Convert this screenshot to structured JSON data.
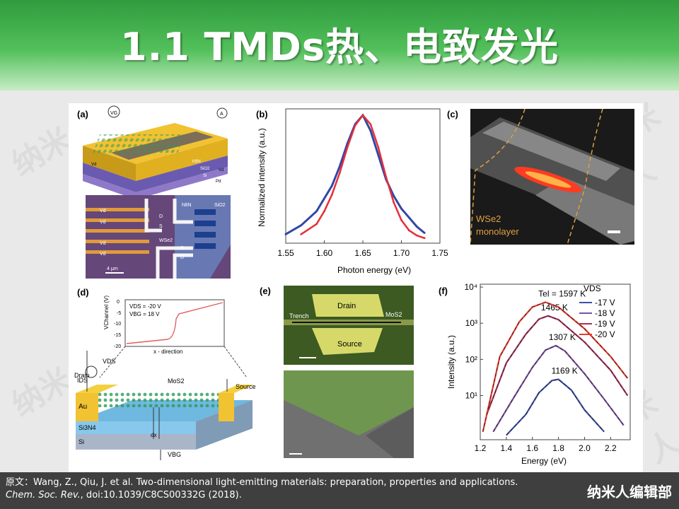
{
  "slide": {
    "title": "1.1 TMDs热、电致发光",
    "watermark": "纳米人",
    "brand": "纳米人编辑部",
    "citation": {
      "prefix": "原文：Wang, Z., Qiu, J. et al. Two-dimensional light-emitting materials: preparation, properties and applications. ",
      "journal": "Chem. Soc. Rev.",
      "suffix": ", doi:10.1039/C8CS00332G (2018)."
    },
    "colors": {
      "banner": "#3aa849",
      "footer": "#3f3f3f"
    }
  },
  "figure": {
    "panel_a": {
      "label": "(a)",
      "device_labels": [
        "VG",
        "A",
        "Vd",
        "Vd",
        "hBN",
        "SiO2",
        "Pd",
        "Si"
      ],
      "micrograph_labels": [
        "Vd",
        "Vd",
        "Vd",
        "Vd",
        "D",
        "S",
        "S",
        "D",
        "WSe2",
        "hBN",
        "SiO2",
        "4 μm"
      ]
    },
    "panel_b": {
      "label": "(b)"
    },
    "panel_c": {
      "label": "(c)",
      "text_line1": "WSe2",
      "text_line2": "monolayer"
    },
    "panel_d": {
      "label": "(d)",
      "inset_labels": [
        "VDS = -20 V",
        "VBG = 18 V",
        "VChannel (V)",
        "x - direction"
      ],
      "inset_yticks": [
        "0",
        "-5",
        "-10",
        "-15",
        "-20"
      ],
      "device_labels": [
        "VDS",
        "IDS",
        "Drain",
        "Source",
        "MoS2",
        "Au",
        "Si3N4",
        "Si",
        "dx",
        "VBG"
      ]
    },
    "panel_e": {
      "label": "(e)",
      "labels": [
        "Drain",
        "Trench",
        "MoS2",
        "Source"
      ]
    },
    "panel_f": {
      "label": "(f)",
      "legend_title": "VDS"
    }
  },
  "chart_data": [
    {
      "type": "line",
      "panel": "(b)",
      "xlabel": "Photon energy (eV)",
      "ylabel": "Normalized intensity (a.u.)",
      "xlim": [
        1.55,
        1.75
      ],
      "ylim": [
        0,
        1.05
      ],
      "xticks": [
        "1.55",
        "1.60",
        "1.65",
        "1.70",
        "1.75"
      ],
      "series": [
        {
          "color": "#3246a8",
          "x": [
            1.55,
            1.57,
            1.59,
            1.61,
            1.62,
            1.63,
            1.64,
            1.65,
            1.66,
            1.67,
            1.68,
            1.69,
            1.7,
            1.71,
            1.72,
            1.73
          ],
          "y": [
            0.07,
            0.14,
            0.25,
            0.45,
            0.6,
            0.78,
            0.93,
            1.0,
            0.88,
            0.69,
            0.5,
            0.37,
            0.27,
            0.2,
            0.13,
            0.08
          ]
        },
        {
          "color": "#e53037",
          "x": [
            1.57,
            1.59,
            1.6,
            1.61,
            1.62,
            1.63,
            1.64,
            1.65,
            1.66,
            1.67,
            1.68,
            1.69,
            1.7,
            1.71,
            1.72,
            1.73
          ],
          "y": [
            0.07,
            0.15,
            0.25,
            0.38,
            0.55,
            0.75,
            0.92,
            1.0,
            0.93,
            0.75,
            0.52,
            0.32,
            0.18,
            0.1,
            0.06,
            0.04
          ]
        }
      ]
    },
    {
      "type": "line",
      "panel": "(f)",
      "xlabel": "Energy (eV)",
      "ylabel": "Intensity (a.u.)",
      "log_y": true,
      "xlim": [
        1.2,
        2.35
      ],
      "ylim": [
        0.6,
        12000
      ],
      "xticks": [
        "1.2",
        "1.4",
        "1.6",
        "1.8",
        "2.0",
        "2.2"
      ],
      "yticks": [
        "10¹",
        "10²",
        "10³",
        "10⁴"
      ],
      "series": [
        {
          "name": "-17 V",
          "color": "#3d4fa8",
          "label": "1169 K",
          "x": [
            1.4,
            1.55,
            1.65,
            1.75,
            1.8,
            1.9,
            2.0,
            2.15
          ],
          "y": [
            0.8,
            3,
            12,
            26,
            28,
            14,
            4,
            1
          ]
        },
        {
          "name": "-18 V",
          "color": "#7b4fa0",
          "label": "1307 K",
          "x": [
            1.3,
            1.45,
            1.6,
            1.7,
            1.78,
            1.85,
            2.0,
            2.15,
            2.3
          ],
          "y": [
            1,
            8,
            60,
            180,
            240,
            170,
            40,
            8,
            1.5
          ]
        },
        {
          "name": "-19 V",
          "color": "#a8305a",
          "label": "1465 K",
          "x": [
            1.25,
            1.4,
            1.55,
            1.65,
            1.72,
            1.8,
            2.0,
            2.2,
            2.33
          ],
          "y": [
            3,
            80,
            500,
            1300,
            1600,
            1250,
            300,
            50,
            10
          ]
        },
        {
          "name": "-20 V",
          "color": "#e8392e",
          "label": "1597 K",
          "x": [
            1.22,
            1.35,
            1.5,
            1.6,
            1.7,
            1.8,
            2.0,
            2.2,
            2.33
          ],
          "y": [
            1,
            120,
            1100,
            2800,
            3800,
            2800,
            700,
            120,
            30
          ]
        }
      ],
      "temperature_prefix": "Tel = "
    }
  ]
}
